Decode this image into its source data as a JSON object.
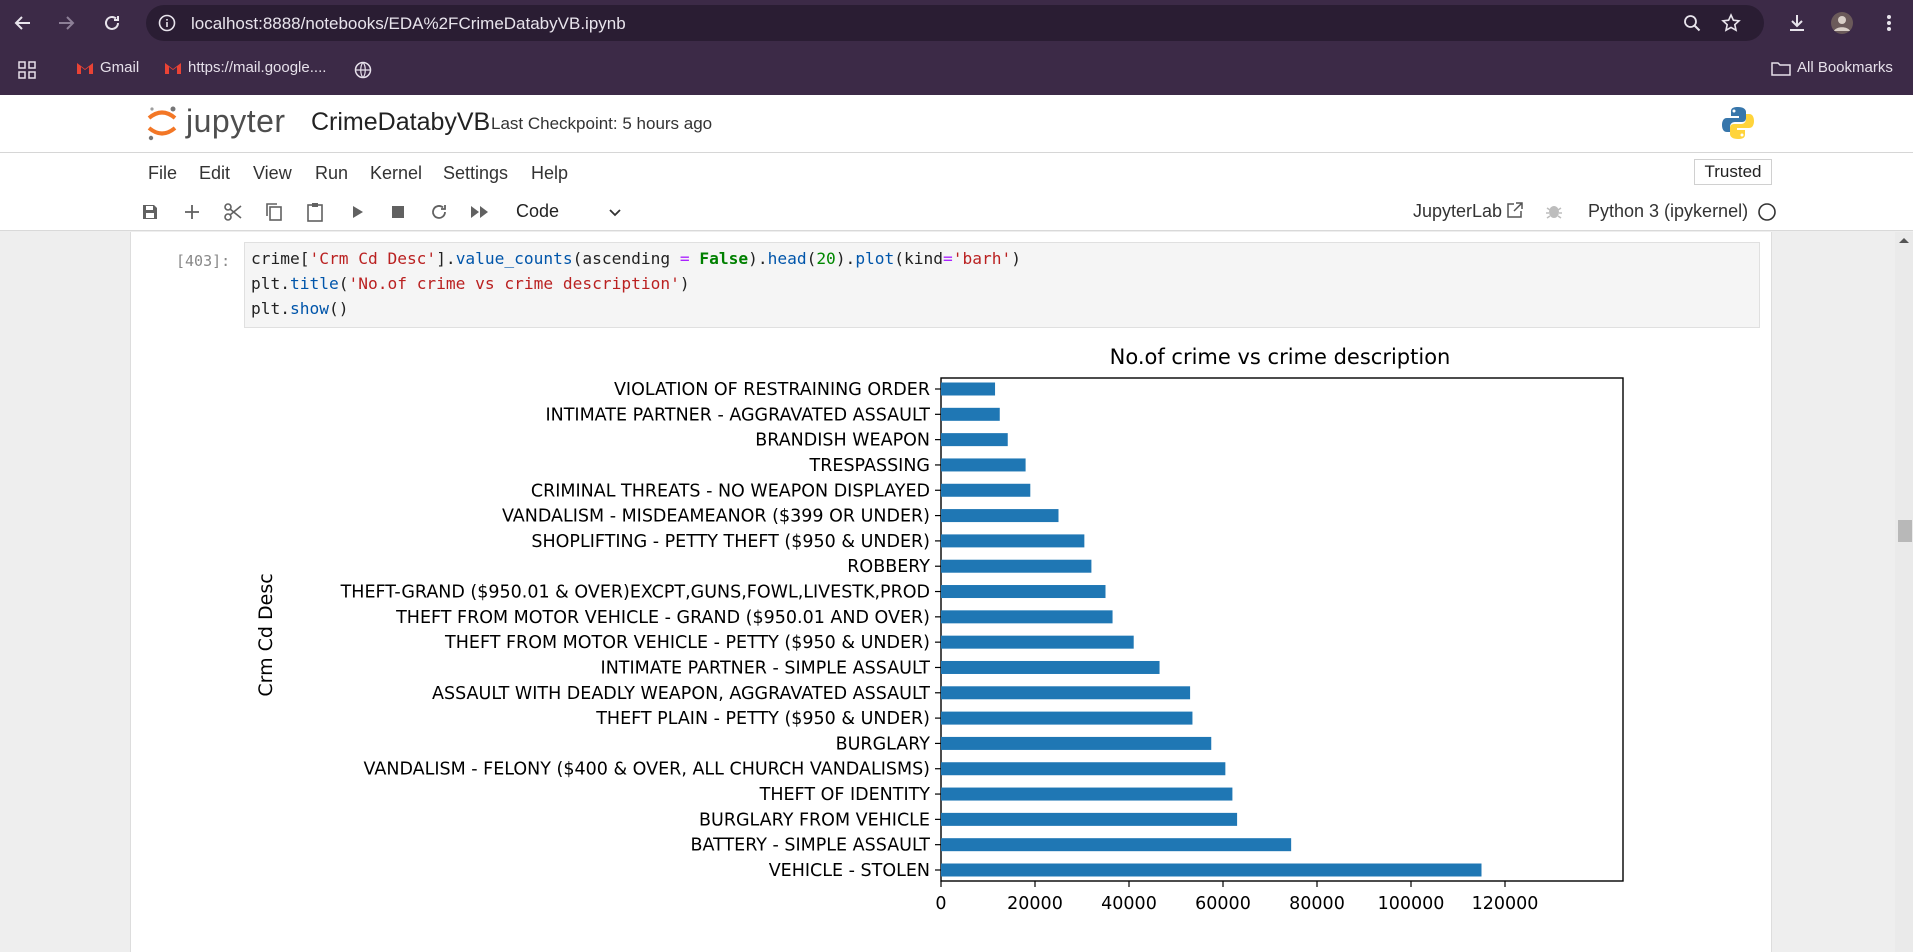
{
  "browser": {
    "url": "localhost:8888/notebooks/EDA%2FCrimeDatabyVB.ipynb",
    "bookmarks": [
      "Gmail",
      "https://mail.google....",
      "All Bookmarks"
    ]
  },
  "jupyter": {
    "logo_text": "jupyter",
    "notebook_title": "CrimeDatabyVB",
    "checkpoint": "Last Checkpoint: 5 hours ago",
    "menu": [
      "File",
      "Edit",
      "View",
      "Run",
      "Kernel",
      "Settings",
      "Help"
    ],
    "trusted": "Trusted",
    "cell_type": "Code",
    "jupyterlab_link": "JupyterLab",
    "kernel": "Python 3 (ipykernel)"
  },
  "cell": {
    "prompt": "[403]:",
    "code": [
      "crime['Crm Cd Desc'].value_counts(ascending = False).head(20).plot(kind='barh')",
      "plt.title('No.of crime vs crime description')",
      "plt.show()"
    ]
  },
  "colors": {
    "bar": "#1f77b4",
    "chrome": "#3c2a47",
    "jupyter_orange": "#f37726"
  },
  "chart_data": {
    "type": "bar",
    "orientation": "horizontal",
    "title": "No.of crime vs crime description",
    "ylabel": "Crm Cd Desc",
    "xlabel": "",
    "xlim": [
      0,
      122000
    ],
    "xticks": [
      0,
      20000,
      40000,
      60000,
      80000,
      100000,
      120000
    ],
    "categories": [
      "VIOLATION OF RESTRAINING ORDER",
      "INTIMATE PARTNER - AGGRAVATED ASSAULT",
      "BRANDISH WEAPON",
      "TRESPASSING",
      "CRIMINAL THREATS - NO WEAPON DISPLAYED",
      "VANDALISM - MISDEAMEANOR ($399 OR UNDER)",
      "SHOPLIFTING - PETTY THEFT ($950 & UNDER)",
      "ROBBERY",
      "THEFT-GRAND ($950.01 & OVER)EXCPT,GUNS,FOWL,LIVESTK,PROD",
      "THEFT FROM MOTOR VEHICLE - GRAND ($950.01 AND OVER)",
      "THEFT FROM MOTOR VEHICLE - PETTY ($950 & UNDER)",
      "INTIMATE PARTNER - SIMPLE ASSAULT",
      "ASSAULT WITH DEADLY WEAPON, AGGRAVATED ASSAULT",
      "THEFT PLAIN - PETTY ($950 & UNDER)",
      "BURGLARY",
      "VANDALISM - FELONY ($400 & OVER, ALL CHURCH VANDALISMS)",
      "THEFT OF IDENTITY",
      "BURGLARY FROM VEHICLE",
      "BATTERY - SIMPLE ASSAULT",
      "VEHICLE - STOLEN"
    ],
    "values": [
      11500,
      12500,
      14200,
      18000,
      19000,
      25000,
      30500,
      32000,
      35000,
      36500,
      41000,
      46500,
      53000,
      53500,
      57500,
      60500,
      62000,
      63000,
      74500,
      115000
    ],
    "grid": false,
    "legend": false
  }
}
